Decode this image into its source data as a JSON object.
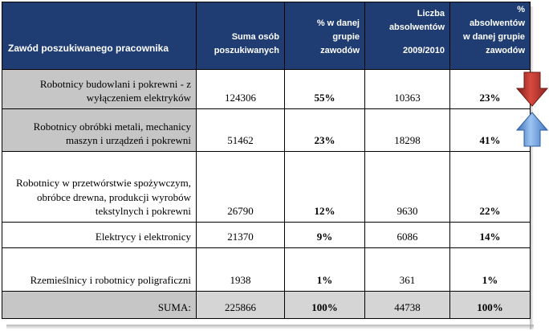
{
  "table": {
    "headers": {
      "occupation": "Zawód poszukiwanego pracownika",
      "sought_total": "Suma osób poszukiwanych",
      "share_line1": "% w danej",
      "share_line2": "grupie",
      "share_line3": "zawodów",
      "grads_line1": "Liczba",
      "grads_line2": "absolwentów",
      "grads_year": "2009/2010",
      "grads_pct_line1": "%",
      "grads_pct_line2": "absolwentów",
      "grads_pct_line3": "w danej grupie",
      "grads_pct_line4": "zawodów"
    },
    "rows": [
      {
        "occupation": "Robotnicy budowlani i pokrewni - z wyłączeniem elektryków",
        "sought_total": "124306",
        "share": "55%",
        "graduates": "10363",
        "graduates_share": "23%"
      },
      {
        "occupation": "Robotnicy obróbki metali, mechanicy maszyn i urządzeń i pokrewni",
        "sought_total": "51462",
        "share": "23%",
        "graduates": "18298",
        "graduates_share": "41%"
      },
      {
        "occupation": "Robotnicy w przetwórstwie spożywczym, obróbce drewna, produkcji wyrobów tekstylnych i pokrewni",
        "sought_total": "26790",
        "share": "12%",
        "graduates": "9630",
        "graduates_share": "22%"
      },
      {
        "occupation": "Elektrycy i elektronicy",
        "sought_total": "21370",
        "share": "9%",
        "graduates": "6086",
        "graduates_share": "14%"
      },
      {
        "occupation": "Rzemieślnicy i robotnicy poligraficzni",
        "sought_total": "1938",
        "share": "1%",
        "graduates": "361",
        "graduates_share": "1%"
      }
    ],
    "sum": {
      "label": "SUMA:",
      "sought_total": "225866",
      "share": "100%",
      "graduates": "44738",
      "graduates_share": "100%"
    }
  },
  "indicators": {
    "row1_arrow": "arrow-down-icon",
    "row1_color": "#c0392b",
    "row2_arrow": "arrow-up-icon",
    "row2_color": "#4a86d4"
  },
  "colors": {
    "header_bg": "#1f3d73",
    "label_bg": "#c6c6c6",
    "sum_bg": "#d5d5d5"
  }
}
